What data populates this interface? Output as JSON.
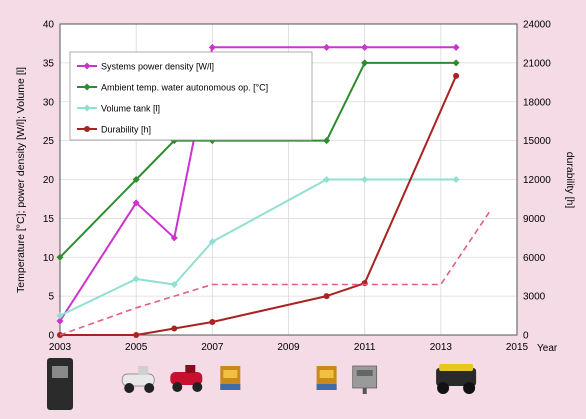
{
  "chart_data": {
    "type": "line",
    "x_range": [
      2003,
      2015
    ],
    "x_ticks": [
      "2003",
      "2005",
      "2007",
      "2009",
      "2011",
      "2013",
      "2015"
    ],
    "x_unit_label": "Year",
    "y_left_range": [
      0,
      40
    ],
    "y_left_ticks": [
      "0",
      "5",
      "10",
      "15",
      "20",
      "25",
      "30",
      "35",
      "40"
    ],
    "y_left_label": "Temperature [°C]; power density [W/l]; Volume [l]",
    "y_right_range": [
      0,
      24000
    ],
    "y_right_ticks": [
      "0",
      "3000",
      "6000",
      "9000",
      "12000",
      "15000",
      "18000",
      "21000",
      "24000"
    ],
    "y_right_label": "durability [h]",
    "grid": true,
    "legend_position": "top-left",
    "series": [
      {
        "name": "Systems power density [W/l]",
        "axis": "left",
        "color": "#cc33cc",
        "dashed": false,
        "points": [
          [
            2003,
            1.8
          ],
          [
            2005,
            17
          ],
          [
            2006,
            12.5
          ],
          [
            2007,
            37
          ],
          [
            2010,
            37
          ],
          [
            2011,
            37
          ],
          [
            2013.4,
            37
          ]
        ]
      },
      {
        "name": "Ambient temp. water autonomous op. [°C]",
        "axis": "left",
        "color": "#2e8b2e",
        "dashed": false,
        "points": [
          [
            2003,
            10
          ],
          [
            2005,
            20
          ],
          [
            2006,
            25
          ],
          [
            2007,
            25
          ],
          [
            2010,
            25
          ],
          [
            2011,
            35
          ],
          [
            2013.4,
            35
          ]
        ]
      },
      {
        "name": "Volume tank [l]",
        "axis": "left",
        "color": "#8fe0d0",
        "dashed": false,
        "points": [
          [
            2003,
            2.5
          ],
          [
            2005,
            7.2
          ],
          [
            2006,
            6.5
          ],
          [
            2007,
            12
          ],
          [
            2010,
            20
          ],
          [
            2011,
            20
          ],
          [
            2013.4,
            20
          ]
        ]
      },
      {
        "name": "Durability [h]",
        "axis": "right",
        "color": "#aa2222",
        "dashed": false,
        "points": [
          [
            2003,
            0
          ],
          [
            2005,
            0
          ],
          [
            2006,
            500
          ],
          [
            2007,
            1000
          ],
          [
            2010,
            3000
          ],
          [
            2011,
            4000
          ],
          [
            2013.4,
            20000
          ]
        ]
      },
      {
        "name": "",
        "axis": "left",
        "color": "#e06080",
        "dashed": true,
        "points": [
          [
            2003,
            0
          ],
          [
            2005,
            3.5
          ],
          [
            2007,
            6.5
          ],
          [
            2010,
            6.5
          ],
          [
            2011,
            6.5
          ],
          [
            2013,
            6.5
          ],
          [
            2014.3,
            16
          ]
        ]
      }
    ]
  },
  "product_images": [
    {
      "icon": "fuel-cell-unit-icon",
      "year": 2003
    },
    {
      "icon": "white-scooter-icon",
      "year": 2005
    },
    {
      "icon": "red-scooter-icon",
      "year": 2006
    },
    {
      "icon": "cartridge-box-icon",
      "year": 2007
    },
    {
      "icon": "cartridge-box-icon",
      "year": 2010
    },
    {
      "icon": "stacked-module-icon",
      "year": 2011
    },
    {
      "icon": "yellow-robot-vehicle-icon",
      "year": 2013.4
    }
  ],
  "colors": {
    "background": "#f4dbe6",
    "plot_area": "#ffffff",
    "grid": "#d9d9d9"
  }
}
